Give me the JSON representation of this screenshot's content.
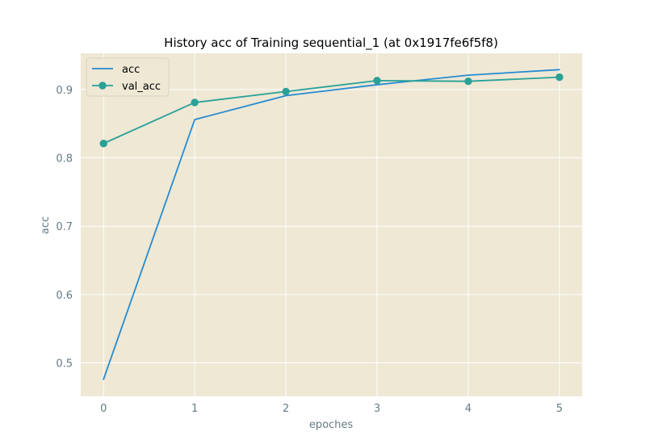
{
  "chart_data": {
    "type": "line",
    "title": "History acc of Training sequential_1 (at 0x1917fe6f5f8)",
    "xlabel": "epoches",
    "ylabel": "acc",
    "x": [
      0,
      1,
      2,
      3,
      4,
      5
    ],
    "xticks": [
      "0",
      "1",
      "2",
      "3",
      "4",
      "5"
    ],
    "yticks": [
      "0.5",
      "0.6",
      "0.7",
      "0.8",
      "0.9"
    ],
    "ytick_values": [
      0.5,
      0.6,
      0.7,
      0.8,
      0.9
    ],
    "xlim": [
      -0.25,
      5.25
    ],
    "ylim": [
      0.451,
      0.953
    ],
    "grid": true,
    "legend_position": "upper-left",
    "plot_background": "#eee8d5",
    "grid_color": "#ffffff",
    "series": [
      {
        "name": "acc",
        "color": "#268bd2",
        "marker": false,
        "values": [
          0.476,
          0.856,
          0.891,
          0.907,
          0.921,
          0.929
        ]
      },
      {
        "name": "val_acc",
        "color": "#2aa198",
        "marker": true,
        "values": [
          0.821,
          0.881,
          0.897,
          0.913,
          0.912,
          0.918
        ]
      }
    ]
  }
}
